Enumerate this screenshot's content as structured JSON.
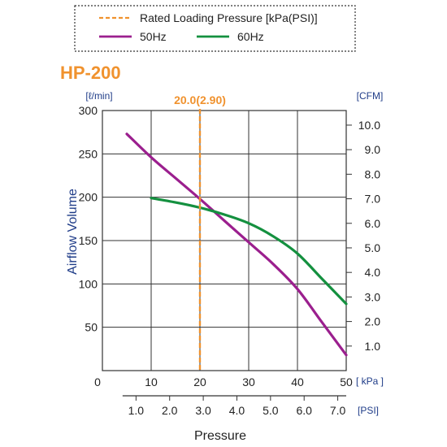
{
  "chart_data": {
    "type": "line",
    "title": "HP-200",
    "legend": {
      "placement": "top",
      "entries": [
        {
          "name": "Rated Loading Pressure [kPa(PSI)]",
          "color": "#f0922e",
          "style": "dashed"
        },
        {
          "name": "50Hz",
          "color": "#9b1f8e",
          "style": "solid"
        },
        {
          "name": "60Hz",
          "color": "#14903f",
          "style": "solid"
        }
      ]
    },
    "y_axis_left": {
      "label": "Airflow Volume",
      "unit": "[ℓ/min]",
      "range": [
        0,
        300
      ],
      "ticks": [
        "300",
        "250",
        "200",
        "150",
        "100",
        "50"
      ],
      "tick_values": [
        300,
        250,
        200,
        150,
        100,
        50
      ]
    },
    "y_axis_right": {
      "unit": "[CFM]",
      "ticks": [
        "10.0",
        "9.0",
        "8.0",
        "7.0",
        "6.0",
        "5.0",
        "4.0",
        "3.0",
        "2.0",
        "1.0"
      ],
      "tick_values": [
        10,
        9,
        8,
        7,
        6,
        5,
        4,
        3,
        2,
        1
      ]
    },
    "x_axis_kpa": {
      "unit": "kPa",
      "unit_text": "[ kPa ]",
      "range": [
        0,
        50
      ],
      "ticks": [
        "0",
        "10",
        "20",
        "30",
        "40",
        "50"
      ],
      "tick_values": [
        0,
        10,
        20,
        30,
        40,
        50
      ]
    },
    "x_axis_psi": {
      "label": "Pressure",
      "unit_text": "[PSI]",
      "ticks": [
        "1.0",
        "2.0",
        "3.0",
        "4.0",
        "5.0",
        "6.0",
        "7.0"
      ],
      "tick_values": [
        1,
        2,
        3,
        4,
        5,
        6,
        7
      ]
    },
    "rated_pressure": {
      "label": "20.0(2.90)",
      "kpa": 20.0,
      "psi": 2.9
    },
    "grid": true,
    "series": [
      {
        "name": "50Hz",
        "color": "#9b1f8e",
        "points": [
          [
            5,
            273
          ],
          [
            10,
            246
          ],
          [
            15,
            222
          ],
          [
            20,
            198
          ],
          [
            25,
            173
          ],
          [
            30,
            148
          ],
          [
            35,
            123
          ],
          [
            40,
            94
          ],
          [
            45,
            56
          ],
          [
            50,
            18
          ]
        ]
      },
      {
        "name": "60Hz",
        "color": "#14903f",
        "points": [
          [
            10,
            199
          ],
          [
            15,
            194
          ],
          [
            20,
            188
          ],
          [
            25,
            180
          ],
          [
            30,
            170
          ],
          [
            35,
            155
          ],
          [
            40,
            135
          ],
          [
            45,
            106
          ],
          [
            50,
            77
          ]
        ]
      }
    ]
  }
}
